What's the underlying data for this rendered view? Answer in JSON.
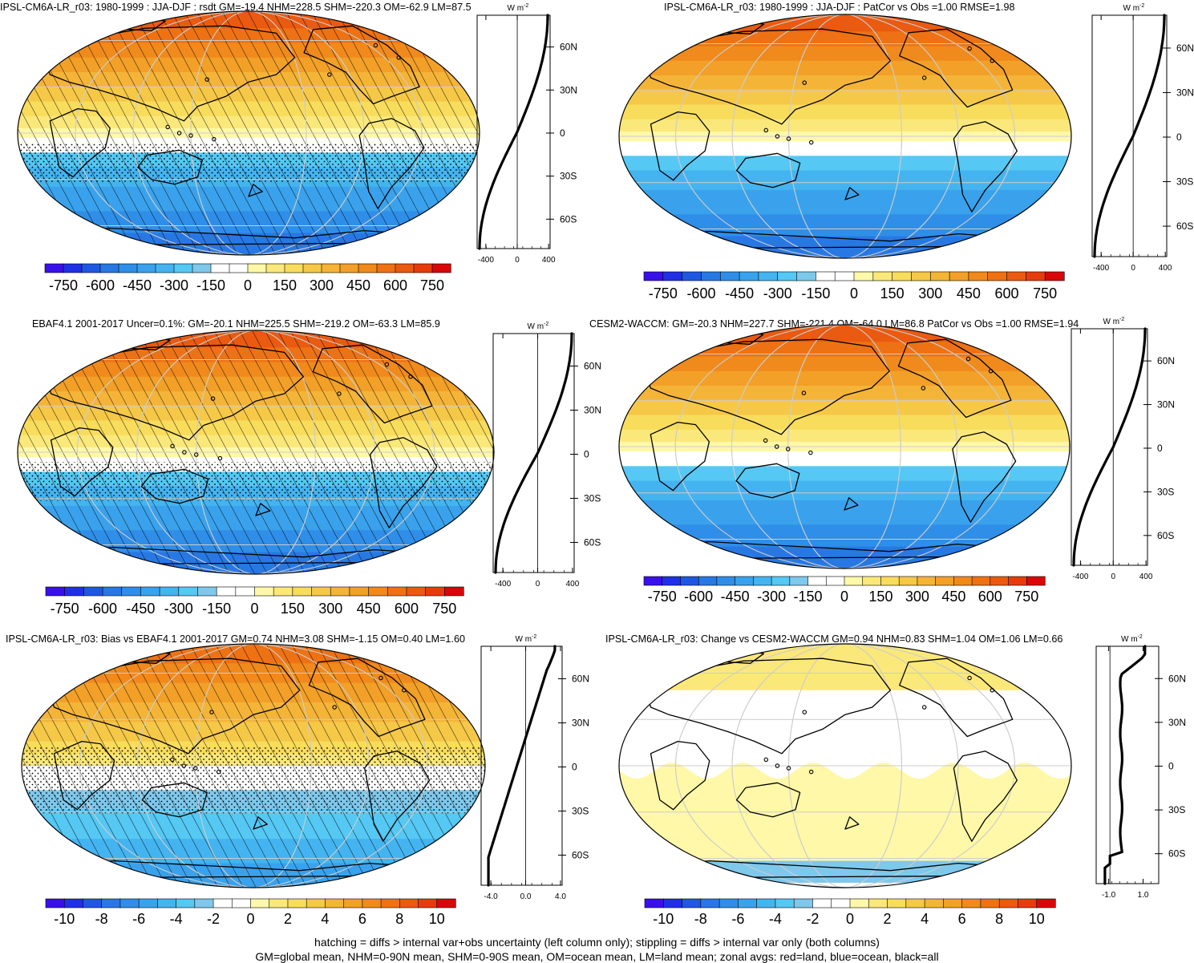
{
  "panels": [
    {
      "id": "p0",
      "title": "IPSL-CM6A-LR_r03: 1980-1999 : JJA-DJF : rsdt GM=-19.4 NHM=228.5 SHM=-220.3 OM=-62.9 LM=87.5",
      "hatch": true,
      "stipple": true
    },
    {
      "id": "p1",
      "title": "IPSL-CM6A-LR_r03: 1980-1999 : JJA-DJF : PatCor vs Obs =1.00 RMSE=1.98",
      "hatch": false,
      "stipple": false
    },
    {
      "id": "p2",
      "title": "EBAF4.1 2001-2017 Uncer=0.1%: GM=-20.1 NHM=225.5 SHM=-219.2 OM=-63.3 LM=85.9",
      "hatch": true,
      "stipple": true
    },
    {
      "id": "p3",
      "title": "CESM2-WACCM: GM=-20.3 NHM=227.7 SHM=-221.4 OM=-64.0 LM=86.8 PatCor vs Obs =1.00 RMSE=1.94",
      "hatch": false,
      "stipple": false
    },
    {
      "id": "p4",
      "title": "IPSL-CM6A-LR_r03: Bias vs EBAF4.1 2001-2017 GM=0.74 NHM=3.08 SHM=-1.15 OM=0.40 LM=1.60",
      "hatch": true,
      "stipple": true
    },
    {
      "id": "p5",
      "title": "IPSL-CM6A-LR_r03: Change vs CESM2-WACCM GM=0.94 NHM=0.83 SHM=1.04 OM=1.06 LM=0.66",
      "hatch": false,
      "stipple": false
    }
  ],
  "zonal_axis": {
    "unit_label": "W m",
    "unit_sup": "-2",
    "lat_ticks": [
      "60N",
      "30N",
      "0",
      "30S",
      "60S"
    ],
    "x_ticks_top": [
      "-400",
      "0",
      "400"
    ],
    "x_ticks_bottom_left": [
      "-4.0",
      "0.0",
      "4.0"
    ],
    "x_ticks_bottom_right": [
      "-1.0",
      "1.0"
    ]
  },
  "colorbars": {
    "mean_labels": [
      "-750",
      "-600",
      "-450",
      "-300",
      "-150",
      "0",
      "150",
      "300",
      "450",
      "600",
      "750"
    ],
    "diff_labels": [
      "-10",
      "-8",
      "-6",
      "-4",
      "-2",
      "0",
      "2",
      "4",
      "6",
      "8",
      "10"
    ],
    "colors": [
      "#3a10e8",
      "#2030e4",
      "#1f58e0",
      "#2878e4",
      "#2f8ee8",
      "#3aa2ec",
      "#44b4f0",
      "#55c8f4",
      "#7ec8ec",
      "#ffffff",
      "#ffffff",
      "#fff8a8",
      "#fbe87a",
      "#f8dc5c",
      "#f6c848",
      "#f4b438",
      "#f2a028",
      "#f08a1c",
      "#ee7214",
      "#ea5a10",
      "#e63c0c",
      "#d80808"
    ]
  },
  "footer": {
    "line1": "hatching = diffs > internal var+obs uncertainty (left column only); stippling = diffs > internal var only (both columns)",
    "line2": "GM=global mean, NHM=0-90N mean, SHM=0-90S mean, OM=ocean mean, LM=land mean; zonal avgs: red=land, blue=ocean, black=all"
  },
  "colors": {
    "land_outline": "#000000",
    "grid": "#cccccc",
    "profile": "#000000"
  }
}
